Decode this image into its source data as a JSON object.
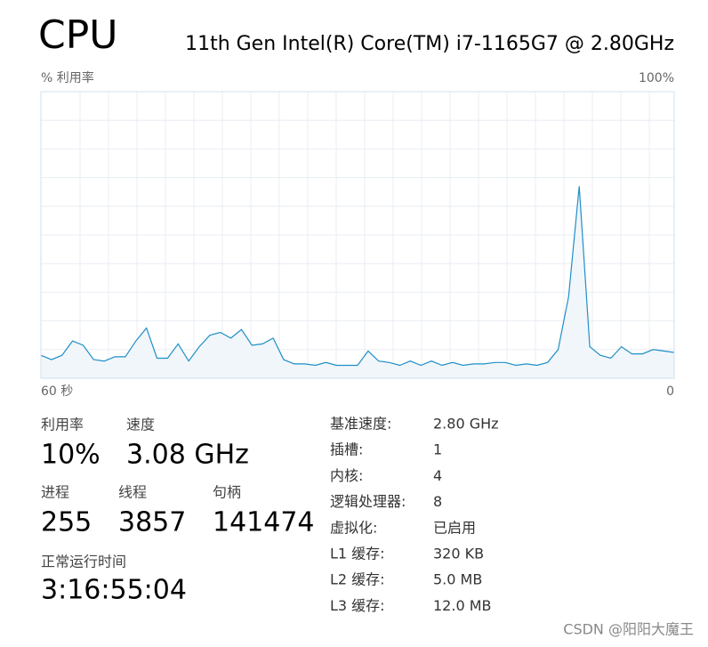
{
  "header": {
    "title": "CPU",
    "subtitle": "11th Gen Intel(R) Core(TM) i7-1165G7 @ 2.80GHz"
  },
  "chart_data": {
    "type": "area",
    "y_label": "% 利用率",
    "ymax_label": "100%",
    "x": [
      60,
      59,
      58,
      57,
      56,
      55,
      54,
      53,
      52,
      51,
      50,
      49,
      48,
      47,
      46,
      45,
      44,
      43,
      42,
      41,
      40,
      39,
      38,
      37,
      36,
      35,
      34,
      33,
      32,
      31,
      30,
      29,
      28,
      27,
      26,
      25,
      24,
      23,
      22,
      21,
      20,
      19,
      18,
      17,
      16,
      15,
      14,
      13,
      12,
      11,
      10,
      9,
      8,
      7,
      6,
      5,
      4,
      3,
      2,
      1,
      0
    ],
    "values": [
      8,
      6.5,
      8,
      13,
      11.5,
      6.5,
      6,
      7.5,
      7.5,
      13,
      17.5,
      7,
      7,
      12,
      6,
      11,
      15,
      16,
      14,
      17,
      11.5,
      12,
      14,
      6.5,
      5,
      5,
      4.5,
      5.5,
      4.5,
      4.5,
      4.5,
      9.5,
      6,
      5.5,
      4.5,
      6,
      4.5,
      6,
      4.5,
      5.5,
      4.5,
      5,
      5,
      5.5,
      5.5,
      4.5,
      5,
      4.5,
      5.5,
      10,
      28.5,
      67,
      11,
      8,
      7,
      11,
      8.5,
      8.5,
      10,
      9.5,
      9
    ],
    "xlim": [
      60,
      0
    ],
    "xticks": [
      {
        "value": 60,
        "label": "60 秒"
      },
      0
    ],
    "ylim": [
      0,
      100
    ],
    "grid": true,
    "color": "#1f8fc7",
    "fill": "#f1f6fb"
  },
  "stats": [
    {
      "label": "利用率",
      "value": "10%"
    },
    {
      "label": "速度",
      "value": "3.08 GHz"
    },
    {
      "label": "进程",
      "value": "255"
    },
    {
      "label": "线程",
      "value": "3857"
    },
    {
      "label": "句柄",
      "value": "141474"
    },
    {
      "label": "正常运行时间",
      "value": "3:16:55:04"
    }
  ],
  "details": [
    [
      "基准速度:",
      "2.80 GHz"
    ],
    [
      "插槽:",
      "1"
    ],
    [
      "内核:",
      "4"
    ],
    [
      "逻辑处理器:",
      "8"
    ],
    [
      "虚拟化:",
      "已启用"
    ],
    [
      "L1 缓存:",
      "320 KB"
    ],
    [
      "L2 缓存:",
      "5.0 MB"
    ],
    [
      "L3 缓存:",
      "12.0 MB"
    ]
  ],
  "watermark": "CSDN @阳阳大魔王"
}
